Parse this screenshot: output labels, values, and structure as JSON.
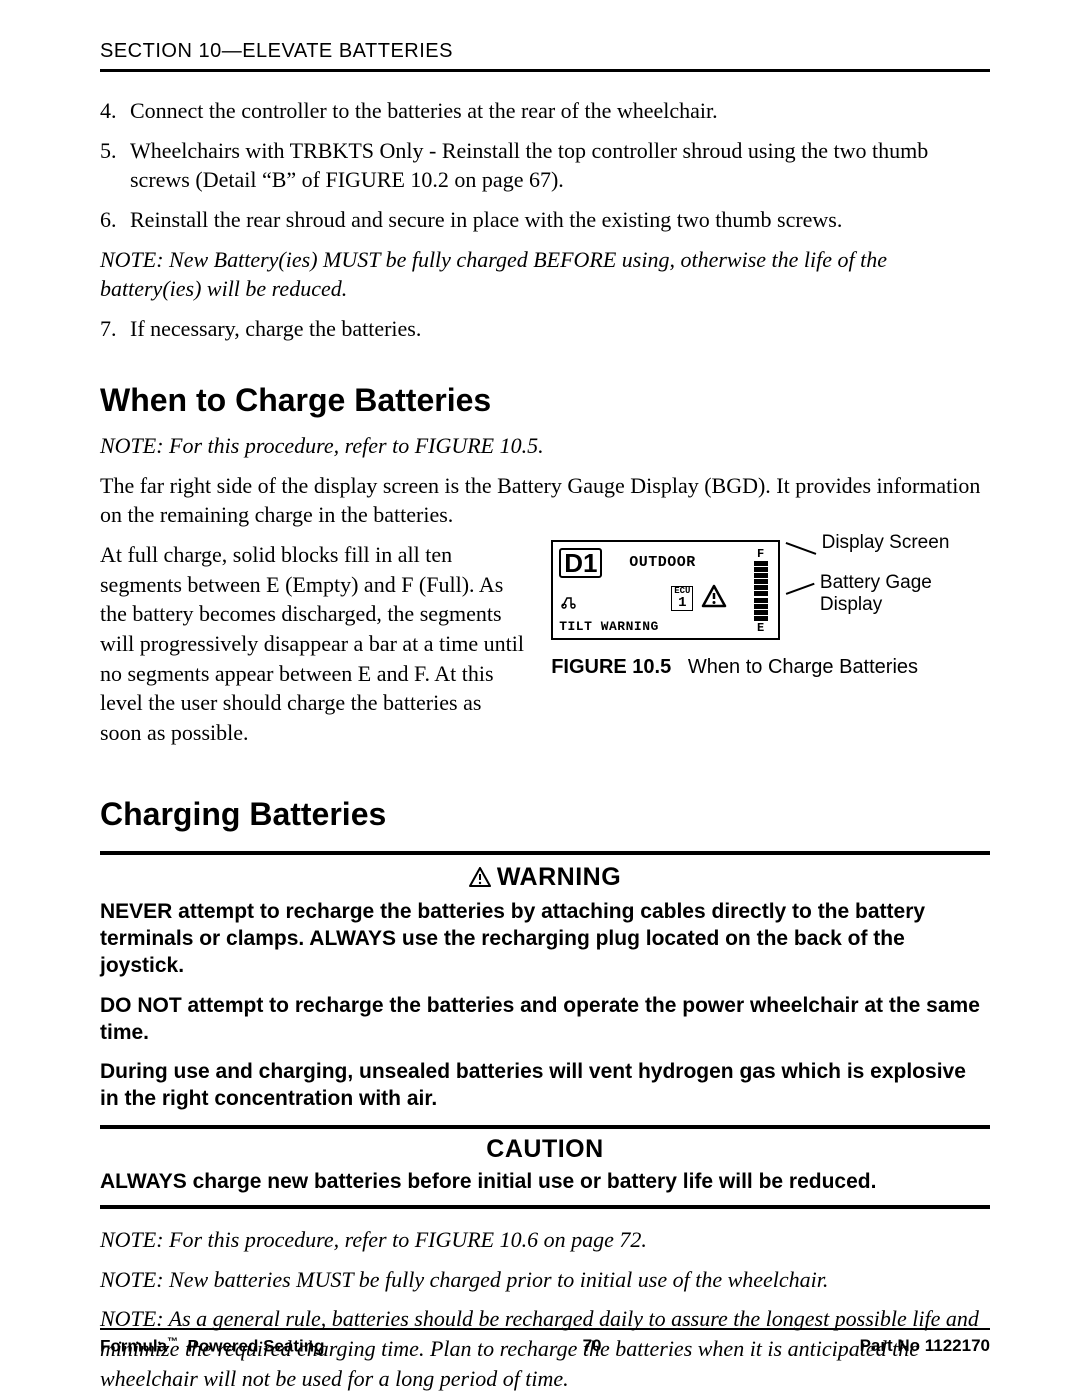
{
  "header": {
    "section": "SECTION 10—ELEVATE BATTERIES"
  },
  "list": {
    "items": [
      {
        "n": "4.",
        "t": "Connect the controller to the batteries at the rear of the wheelchair."
      },
      {
        "n": "5.",
        "t": "Wheelchairs with TRBKTS Only - Reinstall the top controller shroud using the two thumb screws (Detail “B” of FIGURE 10.2 on page 67)."
      },
      {
        "n": "6.",
        "t": "Reinstall the rear shroud and secure in place with the existing two thumb screws."
      }
    ],
    "note1": "NOTE: New Battery(ies) MUST be fully charged BEFORE using, otherwise the life of the battery(ies) will be reduced.",
    "item7": {
      "n": "7.",
      "t": "If necessary, charge the batteries."
    }
  },
  "when": {
    "title": "When to Charge Batteries",
    "note": "NOTE: For this procedure, refer to FIGURE 10.5.",
    "p1": "The far right side of the display screen is the Battery Gauge Display (BGD). It provides information on the remaining charge in the batteries.",
    "p2": "At full charge, solid blocks fill in all ten segments between E (Empty) and F (Full). As the battery becomes discharged, the segments will progressively disappear a bar at a time until no segments appear between E and F. At this level the user should charge the batteries as soon as possible."
  },
  "figure": {
    "d1": "D1",
    "outdoor": "OUTDOOR",
    "ecu": "ECU",
    "ecu_n": "1",
    "tilt": "TILT WARNING",
    "f": "F",
    "e": "E",
    "callout1": "Display Screen",
    "callout2": "Battery Gage Display",
    "label": "FIGURE 10.5",
    "caption": "When to Charge Batteries",
    "gauge_bars": 10
  },
  "charging": {
    "title": "Charging Batteries",
    "warning_label": "WARNING",
    "w1": "NEVER attempt to recharge the batteries by attaching cables directly to the battery terminals or clamps. ALWAYS use the recharging plug located on the back of the joystick.",
    "w2": "DO NOT attempt to recharge the batteries and operate the power wheelchair at the same time.",
    "w3": "During use and charging, unsealed batteries will vent hydrogen gas which is explosive in the right concentration with air.",
    "caution_label": "CAUTION",
    "c1": "ALWAYS charge new batteries before initial use or battery life will be reduced.",
    "n1": "NOTE: For this procedure, refer to FIGURE 10.6 on page 72.",
    "n2": "NOTE: New batteries MUST be fully charged prior to initial use of the wheelchair.",
    "n3": "NOTE: As a general rule, batteries should be recharged daily to assure the longest possible life and minimize the required charging time. Plan to recharge the batteries when it is anticipated the wheelchair will not be used for a long period of time."
  },
  "footer": {
    "left_a": "Formula",
    "left_b": "Powered Seating",
    "page": "70",
    "right": "Part No 1122170"
  }
}
